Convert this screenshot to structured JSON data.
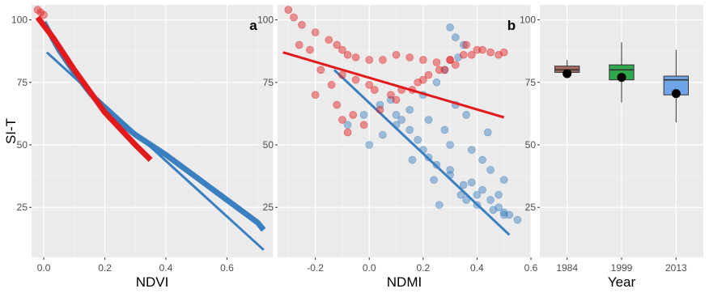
{
  "chart_data": [
    {
      "type": "line",
      "panel_label": "a",
      "xlabel": "NDVI",
      "ylabel": "SI-T",
      "xlim": [
        -0.04,
        0.75
      ],
      "ylim": [
        5,
        106
      ],
      "x_ticks": [
        {
          "value": 0,
          "label": "0.0"
        },
        {
          "value": 0.2,
          "label": "0.2"
        },
        {
          "value": 0.4,
          "label": "0.4"
        },
        {
          "value": 0.6,
          "label": "0.6"
        }
      ],
      "y_ticks": [
        {
          "value": 25,
          "label": "25"
        },
        {
          "value": 50,
          "label": "50"
        },
        {
          "value": 75,
          "label": "75"
        },
        {
          "value": 100,
          "label": "100"
        }
      ],
      "grid": true,
      "series": [
        {
          "color": "#3a7fbf",
          "style": "thick-curve",
          "x": [
            0.0,
            0.05,
            0.1,
            0.15,
            0.2,
            0.3,
            0.4,
            0.5,
            0.6,
            0.7,
            0.72
          ],
          "y": [
            99,
            88,
            79,
            71,
            64,
            54,
            46,
            37,
            28,
            19,
            16
          ]
        },
        {
          "color": "#3a7fbf",
          "style": "line",
          "x": [
            0.01,
            0.72
          ],
          "y": [
            87,
            8
          ]
        },
        {
          "color": "#e31a1c",
          "style": "thick-curve",
          "x": [
            -0.02,
            0.03,
            0.1,
            0.2,
            0.3,
            0.35
          ],
          "y": [
            101,
            93,
            80,
            63,
            50,
            44
          ]
        },
        {
          "color": "#e31a1c",
          "style": "points",
          "x": [
            -0.02,
            -0.01,
            0.0
          ],
          "y": [
            104,
            103,
            102
          ]
        }
      ]
    },
    {
      "type": "scatter",
      "panel_label": "b",
      "xlabel": "NDMI",
      "ylabel": "",
      "xlim": [
        -0.34,
        0.6
      ],
      "ylim": [
        5,
        106
      ],
      "x_ticks": [
        {
          "value": -0.2,
          "label": "-0.2"
        },
        {
          "value": 0,
          "label": "0.0"
        },
        {
          "value": 0.2,
          "label": "0.2"
        },
        {
          "value": 0.4,
          "label": "0.4"
        },
        {
          "value": 0.6,
          "label": "0.6"
        }
      ],
      "y_ticks": [
        {
          "value": 25,
          "label": "25"
        },
        {
          "value": 50,
          "label": "50"
        },
        {
          "value": 75,
          "label": "75"
        },
        {
          "value": 100,
          "label": "100"
        }
      ],
      "grid": true,
      "series": [
        {
          "color": "#3a7fbf",
          "style": "points",
          "x": [
            0.3,
            0.32,
            0.35,
            0.33,
            0.28,
            0.25,
            0.2,
            0.15,
            0.1,
            0.05,
            0.0,
            0.22,
            0.3,
            0.38,
            0.42,
            0.45,
            0.48,
            0.5,
            0.4,
            0.35,
            0.3,
            0.25,
            0.18,
            0.12,
            0.08,
            0.32,
            0.36,
            0.44,
            0.3,
            0.2,
            0.15,
            0.1,
            0.24,
            0.34,
            0.4,
            0.46,
            0.52,
            0.55,
            0.5,
            0.45,
            0.38,
            0.28,
            0.22,
            0.16,
            0.42,
            0.5,
            0.48,
            0.36,
            0.26,
            -0.02,
            -0.08,
            0.04
          ],
          "y": [
            97,
            93,
            90,
            85,
            80,
            75,
            70,
            64,
            58,
            54,
            50,
            45,
            40,
            35,
            32,
            28,
            25,
            22,
            30,
            34,
            38,
            42,
            52,
            60,
            68,
            66,
            62,
            55,
            50,
            48,
            56,
            62,
            36,
            30,
            26,
            24,
            22,
            20,
            23,
            40,
            48,
            56,
            60,
            44,
            44,
            36,
            30,
            28,
            26,
            62,
            58,
            66
          ]
        },
        {
          "color": "#3a7fbf",
          "style": "line",
          "x": [
            -0.13,
            0.52
          ],
          "y": [
            80,
            14
          ]
        },
        {
          "color": "#e31a1c",
          "style": "points",
          "x": [
            -0.3,
            -0.28,
            -0.25,
            -0.2,
            -0.15,
            -0.12,
            -0.1,
            -0.08,
            -0.05,
            0.0,
            0.05,
            0.1,
            0.15,
            0.2,
            0.25,
            0.3,
            0.35,
            0.4,
            0.45,
            0.5,
            -0.18,
            -0.1,
            -0.05,
            0.0,
            0.02,
            0.08,
            0.12,
            0.18,
            0.22,
            0.28,
            0.32,
            0.38,
            -0.2,
            -0.12,
            -0.06,
            0.04,
            0.1,
            0.16,
            -0.02,
            -0.08,
            0.2,
            0.26,
            0.3,
            -0.14,
            -0.1,
            0.36,
            0.42,
            0.48,
            -0.26,
            -0.22
          ],
          "y": [
            104,
            101,
            98,
            95,
            92,
            90,
            88,
            86,
            85,
            84,
            84,
            86,
            85,
            84,
            83,
            84,
            86,
            88,
            87,
            87,
            80,
            78,
            76,
            74,
            72,
            70,
            72,
            75,
            78,
            80,
            82,
            86,
            70,
            66,
            62,
            64,
            68,
            72,
            58,
            55,
            76,
            80,
            84,
            74,
            60,
            90,
            88,
            86,
            90,
            88
          ]
        },
        {
          "color": "#e31a1c",
          "style": "line",
          "x": [
            -0.32,
            0.5
          ],
          "y": [
            87,
            61
          ]
        }
      ]
    },
    {
      "type": "box",
      "panel_label": "",
      "xlabel": "Year",
      "ylabel": "",
      "ylim": [
        5,
        106
      ],
      "categories": [
        "1984",
        "1999",
        "2013"
      ],
      "y_ticks": [
        {
          "value": 25,
          "label": "25"
        },
        {
          "value": 50,
          "label": "50"
        },
        {
          "value": 75,
          "label": "75"
        },
        {
          "value": 100,
          "label": "100"
        }
      ],
      "grid": true,
      "boxes": [
        {
          "category": "1984",
          "color": "#a46b5e",
          "whisker_low": 77,
          "q1": 79,
          "median": 80,
          "q3": 81.5,
          "whisker_high": 84,
          "mean": 78.5
        },
        {
          "category": "1999",
          "color": "#2ea84b",
          "whisker_low": 67,
          "q1": 76,
          "median": 80,
          "q3": 82,
          "whisker_high": 91,
          "mean": 77
        },
        {
          "category": "2013",
          "color": "#6fa4e6",
          "whisker_low": 59,
          "q1": 70,
          "median": 76,
          "q3": 77.5,
          "whisker_high": 88,
          "mean": 70.5
        }
      ]
    }
  ]
}
